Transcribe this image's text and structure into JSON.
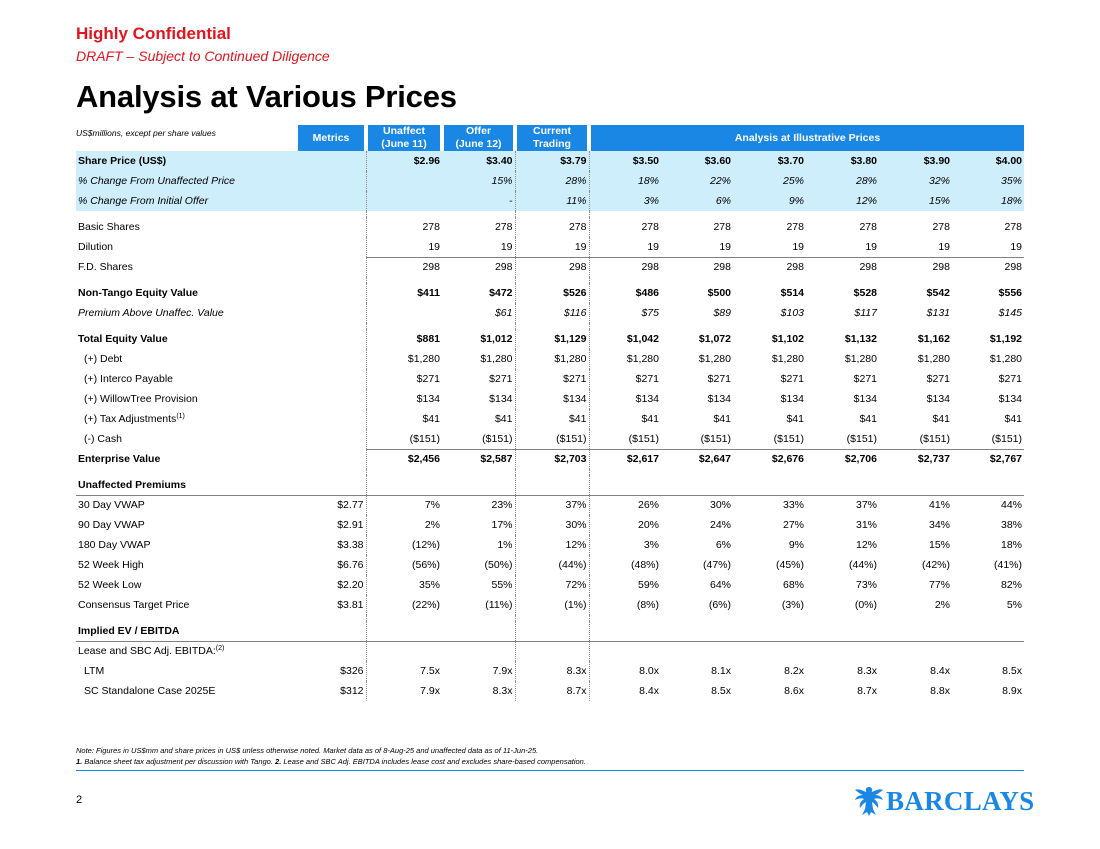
{
  "header": {
    "confidential": "Highly Confidential",
    "draft": "DRAFT – Subject to Continued Diligence",
    "title": "Analysis at Various Prices",
    "units": "US$millions, except per share values"
  },
  "columns": {
    "metrics": "Metrics",
    "unaffect": [
      "Unaffect",
      "(June 11)"
    ],
    "offer": [
      "Offer",
      "(June 12)"
    ],
    "current": [
      "Current",
      "Trading"
    ],
    "illustrative": "Analysis at Illustrative Prices"
  },
  "rows": {
    "share_price": {
      "label": "Share Price (US$)",
      "metric": "",
      "vals": [
        "$2.96",
        "$3.40",
        "$3.79",
        "$3.50",
        "$3.60",
        "$3.70",
        "$3.80",
        "$3.90",
        "$4.00"
      ]
    },
    "chg_unaff": {
      "label": "% Change From Unaffected Price",
      "metric": "",
      "vals": [
        "",
        "15%",
        "28%",
        "18%",
        "22%",
        "25%",
        "28%",
        "32%",
        "35%"
      ]
    },
    "chg_offer": {
      "label": "% Change From Initial Offer",
      "metric": "",
      "vals": [
        "",
        "-",
        "11%",
        "3%",
        "6%",
        "9%",
        "12%",
        "15%",
        "18%"
      ]
    },
    "basic": {
      "label": "Basic Shares",
      "metric": "",
      "vals": [
        "278",
        "278",
        "278",
        "278",
        "278",
        "278",
        "278",
        "278",
        "278"
      ]
    },
    "dilution": {
      "label": "Dilution",
      "metric": "",
      "vals": [
        "19",
        "19",
        "19",
        "19",
        "19",
        "19",
        "19",
        "19",
        "19"
      ]
    },
    "fd": {
      "label": "F.D. Shares",
      "metric": "",
      "vals": [
        "298",
        "298",
        "298",
        "298",
        "298",
        "298",
        "298",
        "298",
        "298"
      ]
    },
    "ntev": {
      "label": "Non-Tango Equity Value",
      "metric": "",
      "vals": [
        "$411",
        "$472",
        "$526",
        "$486",
        "$500",
        "$514",
        "$528",
        "$542",
        "$556"
      ]
    },
    "premium": {
      "label": "Premium Above Unaffec. Value",
      "metric": "",
      "vals": [
        "",
        "$61",
        "$116",
        "$75",
        "$89",
        "$103",
        "$117",
        "$131",
        "$145"
      ]
    },
    "tev": {
      "label": "Total Equity Value",
      "metric": "",
      "vals": [
        "$881",
        "$1,012",
        "$1,129",
        "$1,042",
        "$1,072",
        "$1,102",
        "$1,132",
        "$1,162",
        "$1,192"
      ]
    },
    "debt": {
      "label": "(+) Debt",
      "metric": "",
      "vals": [
        "$1,280",
        "$1,280",
        "$1,280",
        "$1,280",
        "$1,280",
        "$1,280",
        "$1,280",
        "$1,280",
        "$1,280"
      ]
    },
    "interco": {
      "label": "(+) Interco Payable",
      "metric": "",
      "vals": [
        "$271",
        "$271",
        "$271",
        "$271",
        "$271",
        "$271",
        "$271",
        "$271",
        "$271"
      ]
    },
    "willow": {
      "label": "(+) WillowTree Provision",
      "metric": "",
      "vals": [
        "$134",
        "$134",
        "$134",
        "$134",
        "$134",
        "$134",
        "$134",
        "$134",
        "$134"
      ]
    },
    "tax": {
      "label": "(+) Tax Adjustments",
      "sup": "(1)",
      "metric": "",
      "vals": [
        "$41",
        "$41",
        "$41",
        "$41",
        "$41",
        "$41",
        "$41",
        "$41",
        "$41"
      ]
    },
    "cash": {
      "label": "(-) Cash",
      "metric": "",
      "vals": [
        "($151)",
        "($151)",
        "($151)",
        "($151)",
        "($151)",
        "($151)",
        "($151)",
        "($151)",
        "($151)"
      ]
    },
    "ev": {
      "label": "Enterprise Value",
      "metric": "",
      "vals": [
        "$2,456",
        "$2,587",
        "$2,703",
        "$2,617",
        "$2,647",
        "$2,676",
        "$2,706",
        "$2,737",
        "$2,767"
      ]
    },
    "unaff_prem": {
      "label": "Unaffected Premiums"
    },
    "vwap30": {
      "label": "30 Day VWAP",
      "metric": "$2.77",
      "vals": [
        "7%",
        "23%",
        "37%",
        "26%",
        "30%",
        "33%",
        "37%",
        "41%",
        "44%"
      ]
    },
    "vwap90": {
      "label": "90 Day VWAP",
      "metric": "$2.91",
      "vals": [
        "2%",
        "17%",
        "30%",
        "20%",
        "24%",
        "27%",
        "31%",
        "34%",
        "38%"
      ]
    },
    "vwap180": {
      "label": "180 Day VWAP",
      "metric": "$3.38",
      "vals": [
        "(12%)",
        "1%",
        "12%",
        "3%",
        "6%",
        "9%",
        "12%",
        "15%",
        "18%"
      ]
    },
    "high52": {
      "label": "52 Week High",
      "metric": "$6.76",
      "vals": [
        "(56%)",
        "(50%)",
        "(44%)",
        "(48%)",
        "(47%)",
        "(45%)",
        "(44%)",
        "(42%)",
        "(41%)"
      ]
    },
    "low52": {
      "label": "52 Week Low",
      "metric": "$2.20",
      "vals": [
        "35%",
        "55%",
        "72%",
        "59%",
        "64%",
        "68%",
        "73%",
        "77%",
        "82%"
      ]
    },
    "consensus": {
      "label": "Consensus Target Price",
      "metric": "$3.81",
      "vals": [
        "(22%)",
        "(11%)",
        "(1%)",
        "(8%)",
        "(6%)",
        "(3%)",
        "(0%)",
        "2%",
        "5%"
      ]
    },
    "implied": {
      "label": "Implied EV / EBITDA"
    },
    "lease": {
      "label": "Lease and SBC Adj. EBITDA:",
      "sup": "(2)"
    },
    "ltm": {
      "label": "LTM",
      "metric": "$326",
      "vals": [
        "7.5x",
        "7.9x",
        "8.3x",
        "8.0x",
        "8.1x",
        "8.2x",
        "8.3x",
        "8.4x",
        "8.5x"
      ]
    },
    "sc2025": {
      "label": "SC Standalone Case 2025E",
      "metric": "$312",
      "vals": [
        "7.9x",
        "8.3x",
        "8.7x",
        "8.4x",
        "8.5x",
        "8.6x",
        "8.7x",
        "8.8x",
        "8.9x"
      ]
    }
  },
  "notes": {
    "line1": "Note: Figures in US$mm and share prices in US$ unless otherwise noted. Market data as of 8-Aug-25 and unaffected data as of 11-Jun-25.",
    "line2_bold1": "1.",
    "line2_text1": " Balance sheet tax adjustment per discussion with Tango. ",
    "line2_bold2": "2.",
    "line2_text2": " Lease and SBC Adj. EBITDA includes lease cost and excludes share-based compensation."
  },
  "footer": {
    "page": "2",
    "brand": "BARCLAYS"
  },
  "colors": {
    "red": "#e2141d",
    "blue": "#1a87e5",
    "highlight": "#cfeefc"
  }
}
